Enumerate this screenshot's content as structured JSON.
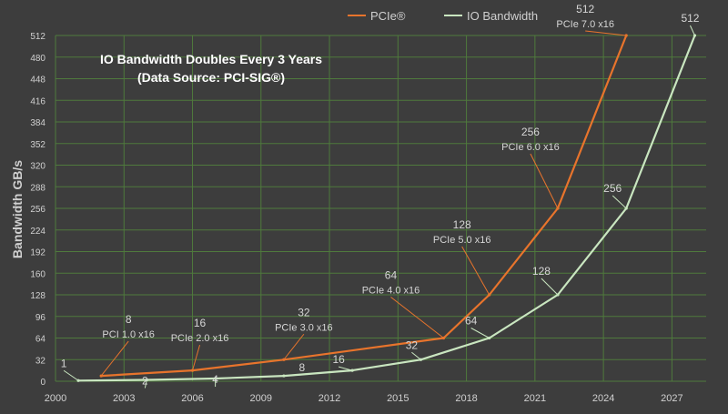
{
  "chart_data": {
    "type": "line",
    "title": "IO Bandwidth Doubles Every 3 Years",
    "subtitle": "(Data Source: PCI-SIG®)",
    "xlabel": "",
    "ylabel": "Bandwidth GB/s",
    "xlim": [
      2000,
      2028.5
    ],
    "ylim": [
      0,
      512
    ],
    "x_ticks": [
      2000,
      2003,
      2006,
      2009,
      2012,
      2015,
      2018,
      2021,
      2024,
      2027
    ],
    "y_ticks": [
      0,
      32,
      64,
      96,
      128,
      160,
      192,
      224,
      256,
      288,
      320,
      352,
      384,
      416,
      448,
      480,
      512
    ],
    "grid": true,
    "legend_position": "top",
    "series": [
      {
        "name": "PCIe®",
        "color": "#e8742c",
        "points": [
          {
            "x": 2002,
            "y": 8
          },
          {
            "x": 2006,
            "y": 16
          },
          {
            "x": 2010,
            "y": 32
          },
          {
            "x": 2017,
            "y": 64
          },
          {
            "x": 2019,
            "y": 128
          },
          {
            "x": 2022,
            "y": 256
          },
          {
            "x": 2025,
            "y": 512
          }
        ]
      },
      {
        "name": "IO Bandwidth",
        "color": "#c9e6c0",
        "points": [
          {
            "x": 2001,
            "y": 1
          },
          {
            "x": 2004,
            "y": 2
          },
          {
            "x": 2007,
            "y": 4
          },
          {
            "x": 2010,
            "y": 8
          },
          {
            "x": 2013,
            "y": 16
          },
          {
            "x": 2016,
            "y": 32
          },
          {
            "x": 2019,
            "y": 64
          },
          {
            "x": 2022,
            "y": 128
          },
          {
            "x": 2025,
            "y": 256
          },
          {
            "x": 2028,
            "y": 512
          }
        ]
      }
    ],
    "annotations": [
      {
        "series": 0,
        "point": 0,
        "value": "8",
        "label": "PCI 1.0 x16"
      },
      {
        "series": 0,
        "point": 1,
        "value": "16",
        "label": "PCIe 2.0 x16"
      },
      {
        "series": 0,
        "point": 2,
        "value": "32",
        "label": "PCIe 3.0 x16"
      },
      {
        "series": 0,
        "point": 3,
        "value": "64",
        "label": "PCIe 4.0 x16"
      },
      {
        "series": 0,
        "point": 4,
        "value": "128",
        "label": "PCIe 5.0 x16"
      },
      {
        "series": 0,
        "point": 5,
        "value": "256",
        "label": "PCIe 6.0 x16"
      },
      {
        "series": 0,
        "point": 6,
        "value": "512",
        "label": "PCIe 7.0 x16"
      },
      {
        "series": 1,
        "point": 0,
        "value": "1",
        "label": ""
      },
      {
        "series": 1,
        "point": 1,
        "value": "2",
        "label": ""
      },
      {
        "series": 1,
        "point": 2,
        "value": "4",
        "label": ""
      },
      {
        "series": 1,
        "point": 3,
        "value": "8",
        "label": ""
      },
      {
        "series": 1,
        "point": 4,
        "value": "16",
        "label": ""
      },
      {
        "series": 1,
        "point": 5,
        "value": "32",
        "label": ""
      },
      {
        "series": 1,
        "point": 6,
        "value": "64",
        "label": ""
      },
      {
        "series": 1,
        "point": 7,
        "value": "128",
        "label": ""
      },
      {
        "series": 1,
        "point": 8,
        "value": "256",
        "label": ""
      },
      {
        "series": 1,
        "point": 9,
        "value": "512",
        "label": ""
      }
    ],
    "colors": {
      "background": "#3d3d3d",
      "grid": "#4f7a3d",
      "axis_text": "#d0d0d0",
      "title_text": "#ffffff"
    }
  }
}
